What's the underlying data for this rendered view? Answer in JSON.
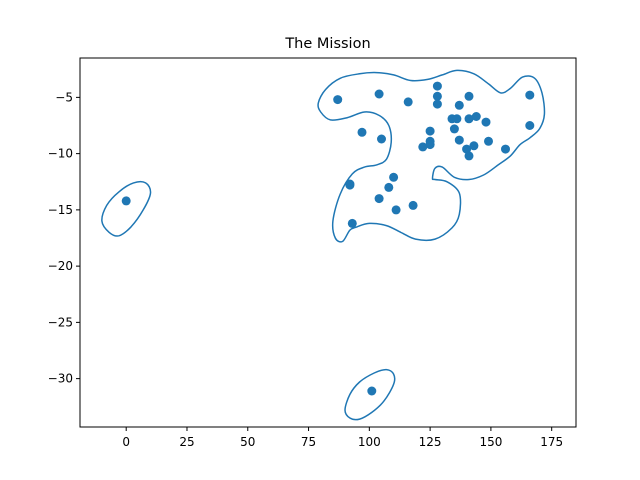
{
  "chart_data": {
    "type": "scatter",
    "title": "The Mission",
    "xlabel": "",
    "ylabel": "",
    "xlim": [
      -19,
      185
    ],
    "ylim": [
      -34.3,
      -1.5
    ],
    "xticks": [
      0,
      25,
      50,
      75,
      100,
      125,
      150,
      175
    ],
    "yticks": [
      -5,
      -10,
      -15,
      -20,
      -25,
      -30
    ],
    "grid": false,
    "point_color": "#1f77b4",
    "contour_color": "#1f77b4",
    "points": [
      {
        "x": 0,
        "y": -14.2
      },
      {
        "x": 87,
        "y": -5.2
      },
      {
        "x": 92,
        "y": -12.7
      },
      {
        "x": 92,
        "y": -12.8
      },
      {
        "x": 93,
        "y": -16.2
      },
      {
        "x": 97,
        "y": -8.1
      },
      {
        "x": 101,
        "y": -31.1
      },
      {
        "x": 104,
        "y": -4.7
      },
      {
        "x": 104,
        "y": -14.0
      },
      {
        "x": 105,
        "y": -8.7
      },
      {
        "x": 108,
        "y": -13.0
      },
      {
        "x": 110,
        "y": -12.1
      },
      {
        "x": 111,
        "y": -15.0
      },
      {
        "x": 116,
        "y": -5.4
      },
      {
        "x": 118,
        "y": -14.6
      },
      {
        "x": 122,
        "y": -9.4
      },
      {
        "x": 125,
        "y": -8.0
      },
      {
        "x": 125,
        "y": -8.9
      },
      {
        "x": 125,
        "y": -9.2
      },
      {
        "x": 128,
        "y": -4.0
      },
      {
        "x": 128,
        "y": -4.9
      },
      {
        "x": 128,
        "y": -5.6
      },
      {
        "x": 134,
        "y": -6.9
      },
      {
        "x": 135,
        "y": -7.8
      },
      {
        "x": 136,
        "y": -6.9
      },
      {
        "x": 137,
        "y": -5.7
      },
      {
        "x": 137,
        "y": -8.8
      },
      {
        "x": 140,
        "y": -9.6
      },
      {
        "x": 141,
        "y": -4.9
      },
      {
        "x": 141,
        "y": -6.9
      },
      {
        "x": 141,
        "y": -10.2
      },
      {
        "x": 143,
        "y": -9.3
      },
      {
        "x": 144,
        "y": -6.7
      },
      {
        "x": 148,
        "y": -7.2
      },
      {
        "x": 149,
        "y": -8.9
      },
      {
        "x": 156,
        "y": -9.6
      },
      {
        "x": 166,
        "y": -4.8
      },
      {
        "x": 166,
        "y": -7.5
      }
    ],
    "contours": [
      [
        [
          -10,
          -16.0
        ],
        [
          -7,
          -17.0
        ],
        [
          -3,
          -17.3
        ],
        [
          2,
          -16.5
        ],
        [
          7,
          -15.0
        ],
        [
          10,
          -13.5
        ],
        [
          8,
          -12.6
        ],
        [
          3,
          -12.6
        ],
        [
          -3,
          -13.4
        ],
        [
          -8,
          -14.6
        ],
        [
          -10,
          -16.0
        ]
      ],
      [
        [
          90,
          -32.8
        ],
        [
          92,
          -33.5
        ],
        [
          96,
          -33.6
        ],
        [
          101,
          -33.0
        ],
        [
          106,
          -32.0
        ],
        [
          110,
          -30.5
        ],
        [
          110,
          -29.6
        ],
        [
          107,
          -29.2
        ],
        [
          102,
          -29.5
        ],
        [
          96,
          -30.3
        ],
        [
          92,
          -31.4
        ],
        [
          90,
          -32.8
        ]
      ],
      [
        [
          80,
          -6.3
        ],
        [
          84,
          -7.0
        ],
        [
          91,
          -6.8
        ],
        [
          98,
          -6.3
        ],
        [
          104,
          -6.6
        ],
        [
          108,
          -7.5
        ],
        [
          109,
          -9.0
        ],
        [
          107,
          -10.5
        ],
        [
          103,
          -11.0
        ],
        [
          98,
          -11.2
        ],
        [
          93,
          -11.8
        ],
        [
          88,
          -13.6
        ],
        [
          85,
          -16.0
        ],
        [
          86,
          -17.5
        ],
        [
          89,
          -17.8
        ],
        [
          92,
          -16.8
        ],
        [
          95,
          -16.5
        ],
        [
          100,
          -16.2
        ],
        [
          107,
          -16.4
        ],
        [
          113,
          -17.0
        ],
        [
          119,
          -17.6
        ],
        [
          127,
          -17.6
        ],
        [
          134,
          -16.6
        ],
        [
          137,
          -15.4
        ],
        [
          137,
          -13.5
        ],
        [
          132,
          -12.5
        ],
        [
          127,
          -12.3
        ],
        [
          126,
          -12.2
        ],
        [
          127,
          -11.3
        ],
        [
          130,
          -11.2
        ],
        [
          135,
          -12.1
        ],
        [
          141,
          -12.3
        ],
        [
          147,
          -11.9
        ],
        [
          153,
          -11.0
        ],
        [
          158,
          -10.2
        ],
        [
          162,
          -9.2
        ],
        [
          166,
          -8.6
        ],
        [
          170,
          -7.8
        ],
        [
          172,
          -6.5
        ],
        [
          171,
          -4.6
        ],
        [
          168,
          -3.3
        ],
        [
          163,
          -3.2
        ],
        [
          158,
          -4.2
        ],
        [
          154,
          -4.6
        ],
        [
          149,
          -3.8
        ],
        [
          143,
          -2.9
        ],
        [
          136,
          -2.6
        ],
        [
          130,
          -3.0
        ],
        [
          124,
          -3.4
        ],
        [
          117,
          -3.5
        ],
        [
          110,
          -3.0
        ],
        [
          103,
          -2.8
        ],
        [
          96,
          -2.9
        ],
        [
          88,
          -3.3
        ],
        [
          82,
          -4.3
        ],
        [
          79,
          -5.5
        ],
        [
          80,
          -6.3
        ]
      ]
    ]
  }
}
